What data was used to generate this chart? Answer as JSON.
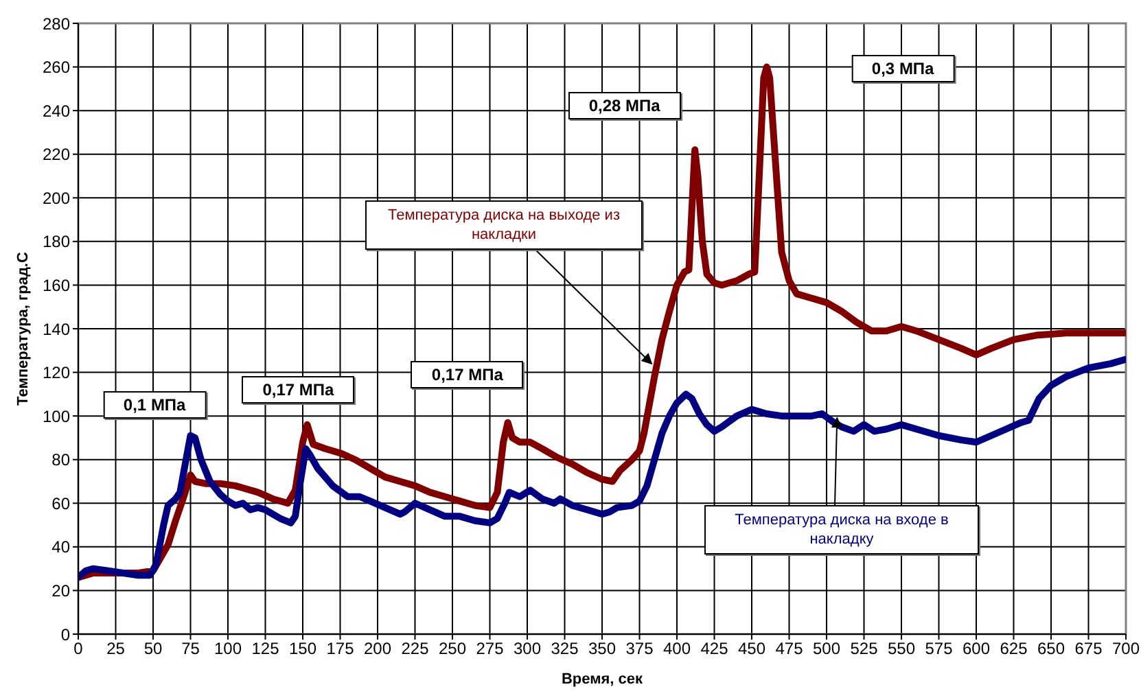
{
  "chart_data": {
    "type": "line",
    "xlabel": "Время, сек",
    "ylabel": "Температура, град.С",
    "xlim": [
      0,
      700
    ],
    "ylim": [
      0,
      280
    ],
    "xticks": [
      0,
      25,
      50,
      75,
      100,
      125,
      150,
      175,
      200,
      225,
      250,
      275,
      300,
      325,
      350,
      375,
      400,
      425,
      450,
      475,
      500,
      525,
      550,
      575,
      600,
      625,
      650,
      675,
      700
    ],
    "yticks": [
      0,
      20,
      40,
      60,
      80,
      100,
      120,
      140,
      160,
      180,
      200,
      220,
      240,
      260,
      280
    ],
    "grid": true,
    "series": [
      {
        "name": "Температура диска на выходе из накладки",
        "color": "#800000",
        "x": [
          0,
          10,
          20,
          30,
          40,
          50,
          55,
          60,
          65,
          70,
          75,
          78,
          85,
          95,
          105,
          110,
          120,
          130,
          140,
          145,
          150,
          153,
          157,
          165,
          175,
          185,
          195,
          205,
          215,
          225,
          235,
          245,
          255,
          265,
          275,
          280,
          284,
          287,
          290,
          295,
          302,
          310,
          320,
          330,
          340,
          350,
          357,
          362,
          370,
          375,
          378,
          385,
          390,
          395,
          400,
          405,
          408,
          410,
          412,
          414,
          417,
          420,
          425,
          430,
          440,
          448,
          452,
          455,
          458,
          460,
          462,
          465,
          470,
          475,
          480,
          490,
          500,
          510,
          520,
          530,
          540,
          550,
          560,
          575,
          590,
          600,
          610,
          625,
          640,
          660,
          680,
          700
        ],
        "values": [
          26,
          28,
          28,
          28,
          28,
          29,
          35,
          41,
          52,
          62,
          73,
          70,
          69,
          69,
          68,
          67,
          65,
          62,
          60,
          66,
          88,
          96,
          87,
          85,
          83,
          80,
          76,
          72,
          70,
          68,
          65,
          63,
          61,
          59,
          58,
          65,
          88,
          97,
          90,
          88,
          88,
          85,
          81,
          78,
          74,
          71,
          70,
          75,
          80,
          84,
          92,
          118,
          135,
          148,
          160,
          166,
          167,
          195,
          222,
          210,
          180,
          165,
          161,
          160,
          162,
          165,
          166,
          210,
          255,
          260,
          255,
          225,
          175,
          162,
          156,
          154,
          152,
          148,
          143,
          139,
          139,
          141,
          139,
          135,
          131,
          128,
          131,
          135,
          137,
          138,
          138,
          138
        ]
      },
      {
        "name": "Температура диска на входе в накладку",
        "color": "#000080",
        "x": [
          0,
          5,
          10,
          20,
          30,
          40,
          48,
          52,
          57,
          60,
          65,
          68,
          72,
          75,
          78,
          82,
          88,
          95,
          100,
          105,
          110,
          115,
          120,
          125,
          135,
          142,
          145,
          148,
          152,
          155,
          160,
          170,
          180,
          188,
          195,
          205,
          215,
          218,
          225,
          235,
          245,
          255,
          265,
          275,
          280,
          285,
          288,
          295,
          302,
          310,
          318,
          322,
          330,
          340,
          350,
          355,
          360,
          370,
          375,
          380,
          385,
          390,
          395,
          400,
          406,
          410,
          415,
          420,
          425,
          430,
          440,
          450,
          460,
          470,
          480,
          490,
          497,
          505,
          510,
          518,
          525,
          532,
          540,
          550,
          560,
          575,
          590,
          600,
          610,
          620,
          630,
          635,
          642,
          650,
          660,
          675,
          690,
          700
        ],
        "values": [
          26,
          29,
          30,
          29,
          28,
          27,
          27,
          32,
          50,
          59,
          62,
          65,
          80,
          91,
          90,
          80,
          70,
          64,
          61,
          59,
          60,
          57,
          58,
          57,
          53,
          51,
          54,
          68,
          85,
          82,
          76,
          68,
          63,
          63,
          61,
          58,
          55,
          56,
          60,
          57,
          54,
          54,
          52,
          51,
          53,
          60,
          65,
          63,
          66,
          62,
          60,
          62,
          59,
          57,
          55,
          56,
          58,
          59,
          61,
          68,
          80,
          92,
          100,
          106,
          110,
          108,
          101,
          96,
          93,
          95,
          100,
          103,
          101,
          100,
          100,
          100,
          101,
          97,
          95,
          93,
          96,
          93,
          94,
          96,
          94,
          91,
          89,
          88,
          91,
          94,
          97,
          98,
          108,
          114,
          118,
          122,
          124,
          126
        ]
      }
    ],
    "annotations": [
      "0,1 МПа",
      "0,17 МПа",
      "0,17 МПа",
      "0,28 МПа",
      "0,3 МПа"
    ]
  }
}
